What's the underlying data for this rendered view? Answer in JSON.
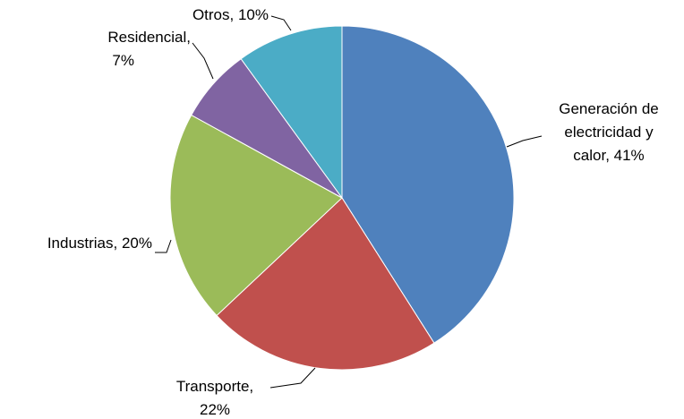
{
  "chart_data": {
    "type": "pie",
    "values": [
      41,
      22,
      20,
      7,
      10
    ],
    "value_labels": [
      [
        "Generación de",
        "electricidad y",
        "calor, 41%"
      ],
      [
        "Transporte,",
        "22%"
      ],
      [
        "Industrias, 20%"
      ],
      [
        "Residencial,",
        "7%"
      ],
      [
        "Otros, 10%"
      ]
    ],
    "colors": [
      "#4f81bd",
      "#c0504d",
      "#9bbb59",
      "#8064a2",
      "#4bacc6"
    ]
  }
}
